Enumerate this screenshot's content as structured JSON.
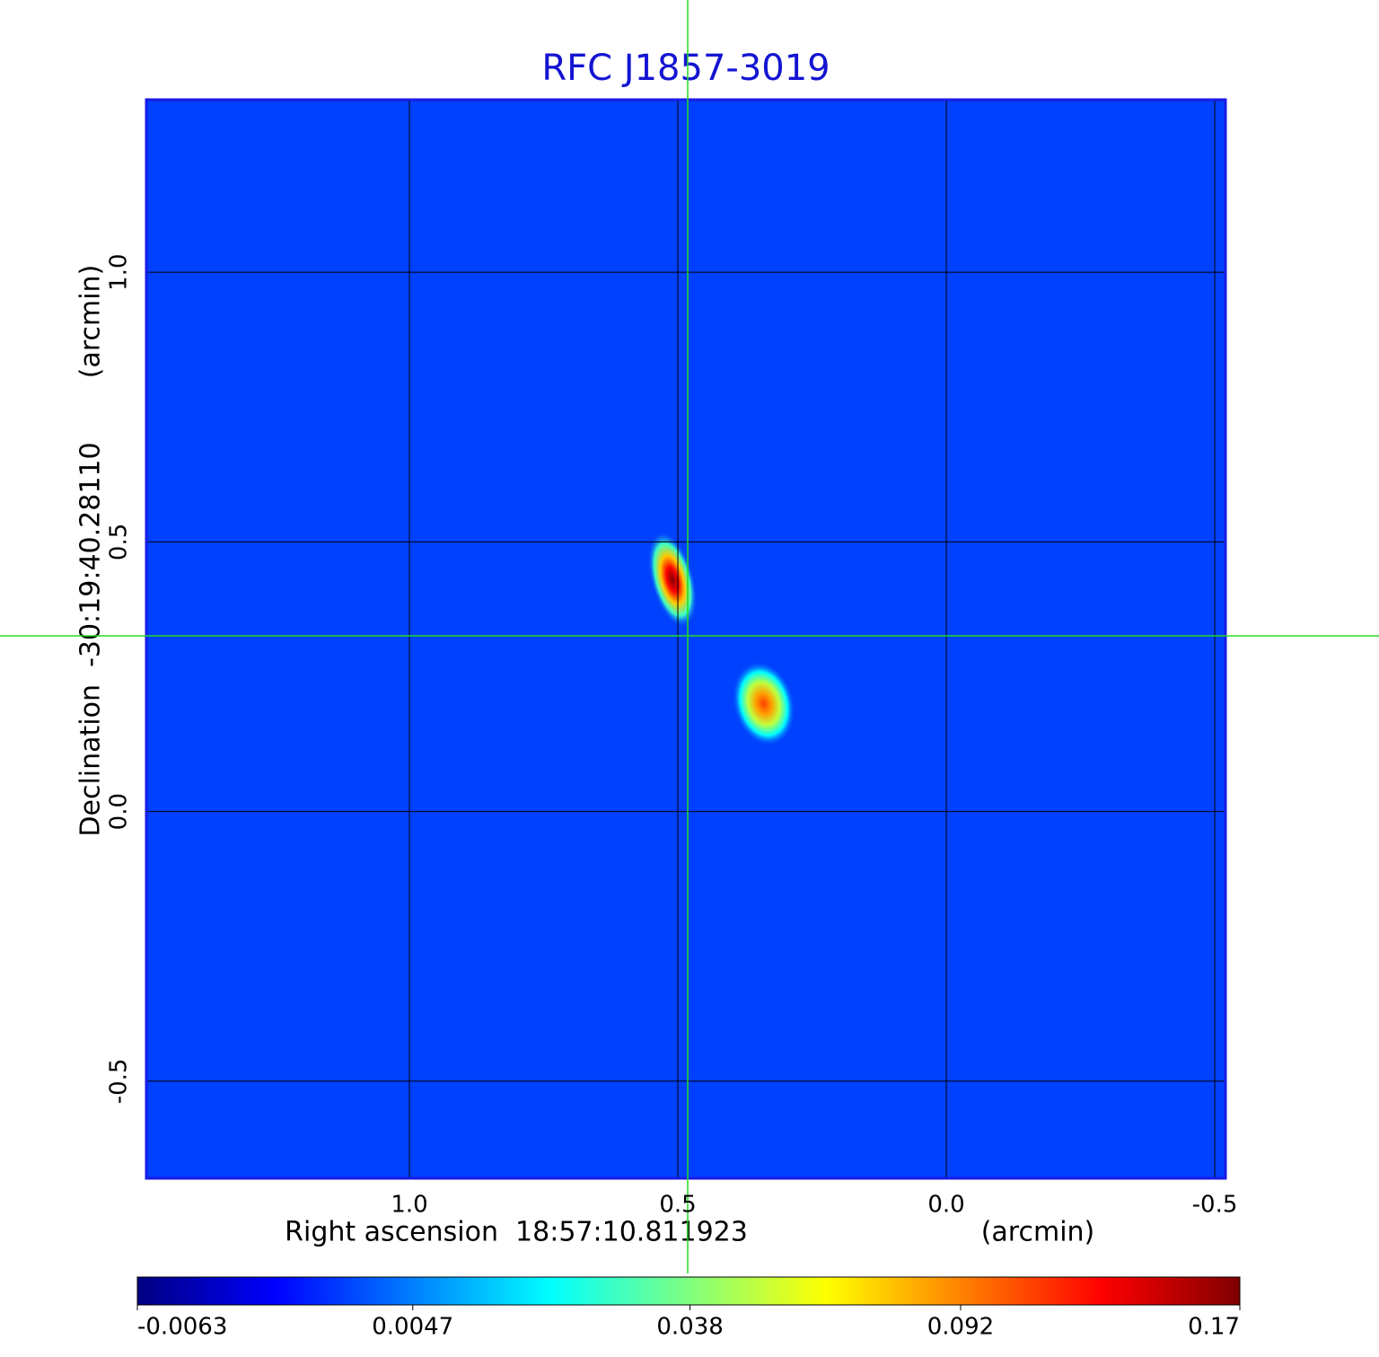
{
  "chart_data": {
    "type": "image",
    "title": "RFC J1857-3019",
    "xlabel": "Right ascension  18:57:10.811923",
    "xunit": "(arcmin)",
    "ylabel": "Declination  -30:19:40.28110",
    "yunit": "(arcmin)",
    "xlim": [
      1.49,
      -0.52
    ],
    "ylim": [
      -0.68,
      1.32
    ],
    "xticks": [
      {
        "value": 1.0,
        "label": "1.0"
      },
      {
        "value": 0.5,
        "label": "0.5"
      },
      {
        "value": 0.0,
        "label": "0.0"
      },
      {
        "value": -0.5,
        "label": "-0.5"
      }
    ],
    "yticks": [
      {
        "value": 1.0,
        "label": "1.0"
      },
      {
        "value": 0.5,
        "label": "0.5"
      },
      {
        "value": 0.0,
        "label": "0.0"
      },
      {
        "value": -0.5,
        "label": "-0.5"
      }
    ],
    "grid": true,
    "colormap": "jet",
    "colorbar": {
      "scale": "sqrt",
      "lim": [
        -0.0063,
        0.17
      ],
      "ticks": [
        -0.0063,
        0.0047,
        0.038,
        0.092,
        0.17
      ]
    },
    "background": 0,
    "sources": [
      {
        "x": 0.51,
        "y": 0.43,
        "peak": 0.17
      },
      {
        "x": 0.34,
        "y": 0.2,
        "peak": 0.11
      }
    ]
  }
}
